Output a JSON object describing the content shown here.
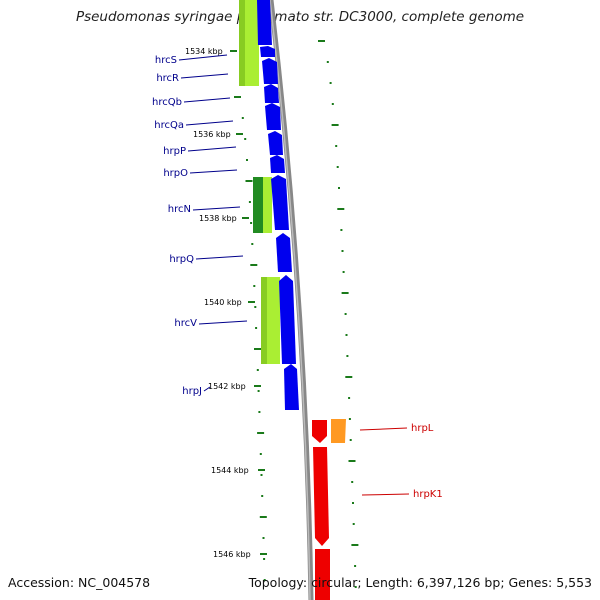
{
  "title": "Pseudomonas syringae pv. tomato str. DC3000, complete genome",
  "footer": {
    "accession_label": "Accession:",
    "accession": "NC_004578",
    "topology_label": "Topology:",
    "topology": "circular",
    "length_label": "Length:",
    "length": "6,397,126 bp",
    "genes_label": "Genes:",
    "genes": "5,553"
  },
  "colors": {
    "blue_feature": "#0000ee",
    "red_feature": "#ee0000",
    "orange_feature": "#ff9922",
    "lime_feature": "#aaee33",
    "green_feature": "#228b22",
    "backbone": "#888888",
    "tick": "#1a7a1a",
    "blue_label": "#00008b",
    "red_label": "#cc0000"
  },
  "scale_labels": [
    "1534 kbp",
    "1536 kbp",
    "1538 kbp",
    "1540 kbp",
    "1542 kbp",
    "1544 kbp",
    "1546 kbp"
  ],
  "genes_left": [
    "hrcS",
    "hrcR",
    "hrcQb",
    "hrcQa",
    "hrpP",
    "hrpO",
    "hrcN",
    "hrpQ",
    "hrcV",
    "hrpJ"
  ],
  "genes_right": [
    "hrpL",
    "hrpK1"
  ]
}
